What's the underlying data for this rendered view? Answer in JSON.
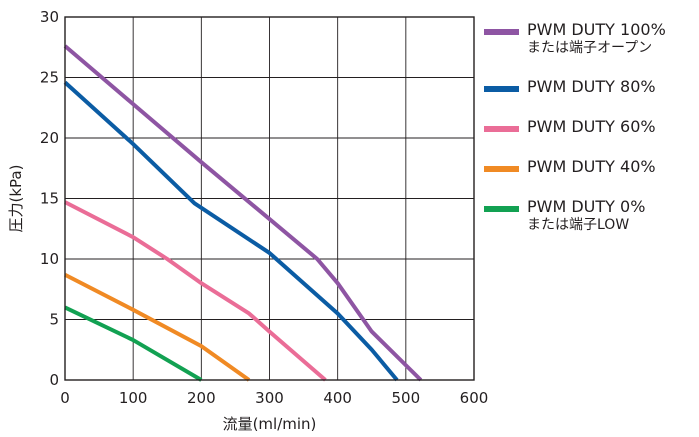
{
  "chart_data": {
    "type": "line",
    "title": "",
    "xlabel": "流量(ml/min)",
    "ylabel": "圧力(kPa)",
    "xlim": [
      0,
      600
    ],
    "ylim": [
      0,
      30
    ],
    "x_ticks": [
      "0",
      "100",
      "200",
      "300",
      "400",
      "500",
      "600"
    ],
    "y_ticks": [
      "0",
      "5",
      "10",
      "15",
      "20",
      "25",
      "30"
    ],
    "grid": true,
    "legend_position": "right",
    "series": [
      {
        "name": "PWM DUTY 100%",
        "name_line2": "または端子オープン",
        "color": "#8e55a3",
        "points": [
          [
            0,
            27.6
          ],
          [
            100,
            22.8
          ],
          [
            200,
            18.0
          ],
          [
            300,
            13.3
          ],
          [
            370,
            10.0
          ],
          [
            400,
            8.0
          ],
          [
            450,
            4.0
          ],
          [
            522,
            0
          ]
        ]
      },
      {
        "name": "PWM DUTY 80%",
        "name_line2": "",
        "color": "#0b5ca4",
        "points": [
          [
            0,
            24.6
          ],
          [
            100,
            19.5
          ],
          [
            190,
            14.6
          ],
          [
            300,
            10.5
          ],
          [
            400,
            5.5
          ],
          [
            450,
            2.5
          ],
          [
            487,
            0
          ]
        ]
      },
      {
        "name": "PWM DUTY 60%",
        "name_line2": "",
        "color": "#ea6d97",
        "points": [
          [
            0,
            14.7
          ],
          [
            100,
            11.8
          ],
          [
            150,
            10.0
          ],
          [
            200,
            8.0
          ],
          [
            270,
            5.5
          ],
          [
            300,
            4.0
          ],
          [
            382,
            0
          ]
        ]
      },
      {
        "name": "PWM DUTY 40%",
        "name_line2": "",
        "color": "#f08a24",
        "points": [
          [
            0,
            8.7
          ],
          [
            100,
            5.8
          ],
          [
            200,
            2.8
          ],
          [
            270,
            0
          ]
        ]
      },
      {
        "name": "PWM DUTY 0%",
        "name_line2": "または端子LOW",
        "color": "#12a152",
        "points": [
          [
            0,
            6.0
          ],
          [
            100,
            3.3
          ],
          [
            200,
            0
          ]
        ]
      }
    ]
  }
}
